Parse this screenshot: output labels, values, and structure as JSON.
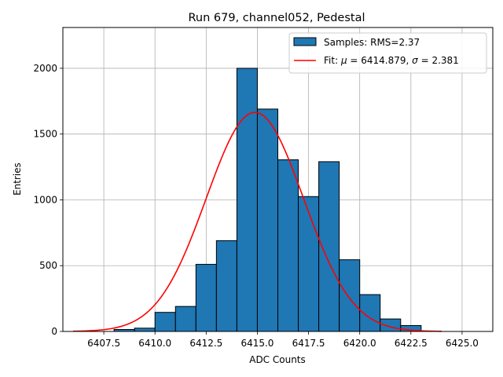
{
  "chart_data": {
    "type": "bar",
    "title": "Run 679, channel052, Pedestal",
    "xlabel": "ADC Counts",
    "ylabel": "Entries",
    "xlim": [
      6405.5,
      6426.5
    ],
    "ylim": [
      0,
      2310
    ],
    "grid": true,
    "legend_position": "top-right",
    "x_ticks": [
      6407.5,
      6410.0,
      6412.5,
      6415.0,
      6417.5,
      6420.0,
      6422.5,
      6425.0
    ],
    "x_tick_labels": [
      "6407.5",
      "6410.0",
      "6412.5",
      "6415.0",
      "6417.5",
      "6420.0",
      "6422.5",
      "6425.0"
    ],
    "y_ticks": [
      0,
      500,
      1000,
      1500,
      2000
    ],
    "y_tick_labels": [
      "0",
      "500",
      "1000",
      "1500",
      "2000"
    ],
    "histogram": {
      "name": "Samples: RMS=2.37",
      "color": "#1f77b4",
      "edge_color": "#000000",
      "bin_edges": [
        6408.0,
        6409.0,
        6410.0,
        6411.0,
        6412.0,
        6413.0,
        6414.0,
        6415.0,
        6416.0,
        6417.0,
        6418.0,
        6419.0,
        6420.0,
        6421.0,
        6422.0,
        6423.0
      ],
      "counts": [
        15,
        25,
        145,
        190,
        510,
        690,
        2000,
        1690,
        1305,
        1025,
        1290,
        545,
        280,
        95,
        45,
        10
      ]
    },
    "fit": {
      "name_prefix": "Fit: ",
      "name_mu": "μ",
      "name_mu_value": " = 6414.879, ",
      "name_sigma": "σ",
      "name_sigma_value": " = 2.381",
      "color": "#ff0000",
      "mu": 6414.879,
      "sigma": 2.381,
      "amplitude": 1665,
      "x_range": [
        6406.0,
        6424.0
      ]
    }
  }
}
